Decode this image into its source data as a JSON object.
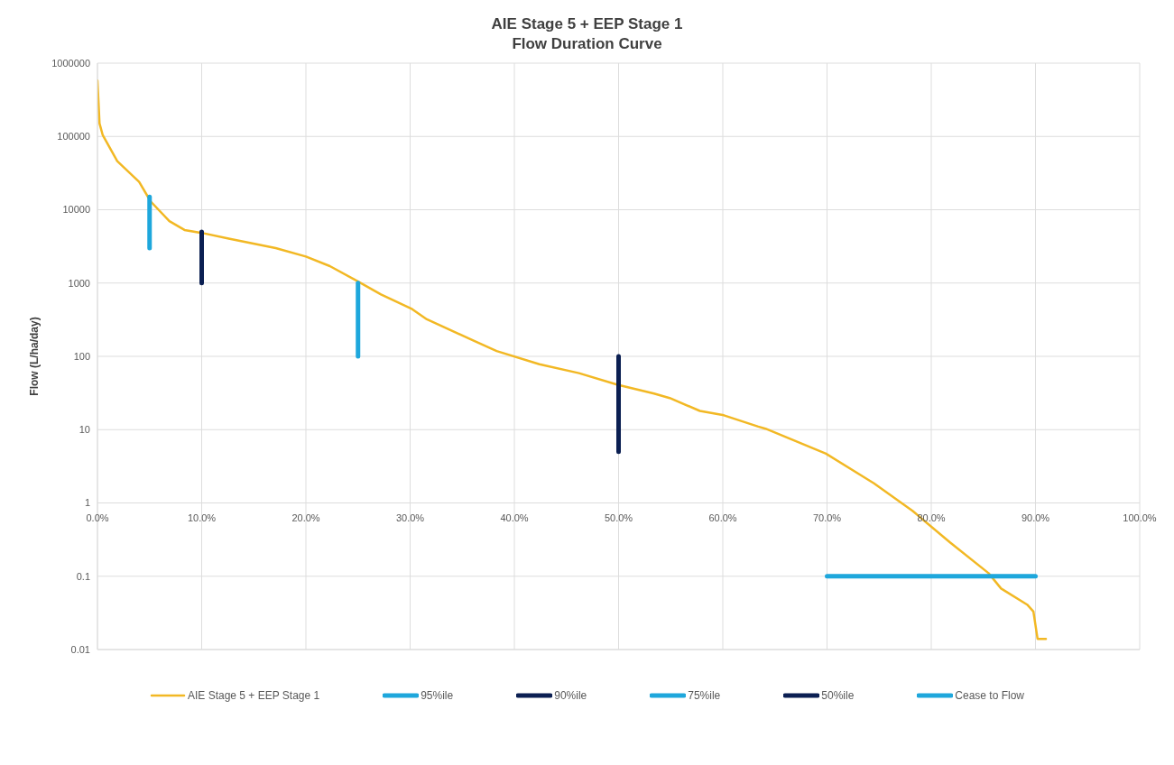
{
  "chart_data": {
    "type": "line",
    "title": "AIE Stage 5 + EEP Stage 1",
    "subtitle": "Flow Duration Curve",
    "ylabel": "Flow (L/ha/day)",
    "log": "y",
    "grid": true,
    "legend": "bottom",
    "marker": "none",
    "line_style": "solid",
    "xlim": [
      0,
      100
    ],
    "xticks": [
      {
        "value": 0,
        "label": "0.0%"
      },
      {
        "value": 10,
        "label": "10.0%"
      },
      {
        "value": 20,
        "label": "20.0%"
      },
      {
        "value": 30,
        "label": "30.0%"
      },
      {
        "value": 40,
        "label": "40.0%"
      },
      {
        "value": 50,
        "label": "50.0%"
      },
      {
        "value": 60,
        "label": "60.0%"
      },
      {
        "value": 70,
        "label": "70.0%"
      },
      {
        "value": 80,
        "label": "80.0%"
      },
      {
        "value": 90,
        "label": "90.0%"
      },
      {
        "value": 100,
        "label": "100.0%"
      }
    ],
    "ylim": [
      0.01,
      1000000
    ],
    "yticks": [
      0.01,
      0.1,
      1,
      10,
      100,
      1000,
      10000,
      100000,
      1000000
    ],
    "series": [
      {
        "name": "AIE Stage 5 + EEP Stage 1",
        "color": "#f2b824",
        "x": [
          0,
          0.2,
          0.5,
          1.9,
          4,
          5.1,
          6.9,
          8.35,
          10.1,
          12.7,
          17.1,
          20,
          22.3,
          24.9,
          27.2,
          30.2,
          31.6,
          36,
          38.3,
          42.4,
          46.2,
          49.9,
          53.4,
          54.9,
          57.8,
          60.1,
          63.4,
          64.1,
          69.9,
          74.5,
          78.2,
          81.8,
          85.5,
          86.7,
          89.2,
          89.8,
          90.2,
          91
        ],
        "values": [
          580000,
          150000,
          105000,
          46000,
          24000,
          13000,
          7000,
          5300,
          4800,
          4000,
          3000,
          2300,
          1700,
          1070,
          700,
          440,
          320,
          166,
          118,
          78,
          59,
          41,
          31,
          27,
          18,
          15.7,
          11,
          10.3,
          4.7,
          1.85,
          0.78,
          0.29,
          0.11,
          0.068,
          0.041,
          0.033,
          0.014,
          0.014
        ]
      },
      {
        "name": "95%ile",
        "color": "#1ea7dc",
        "x": [
          5,
          5
        ],
        "values": [
          15000,
          3000
        ]
      },
      {
        "name": "90%ile",
        "color": "#0b1f52",
        "x": [
          10,
          10
        ],
        "values": [
          5000,
          1000
        ]
      },
      {
        "name": "75%ile",
        "color": "#1ea7dc",
        "x": [
          25,
          25
        ],
        "values": [
          1000,
          100
        ]
      },
      {
        "name": "50%ile",
        "color": "#0b1f52",
        "x": [
          50,
          50
        ],
        "values": [
          100,
          5
        ]
      },
      {
        "name": "Cease to Flow",
        "color": "#1ea7dc",
        "x": [
          70,
          90
        ],
        "values": [
          0.1,
          0.1
        ]
      }
    ]
  }
}
